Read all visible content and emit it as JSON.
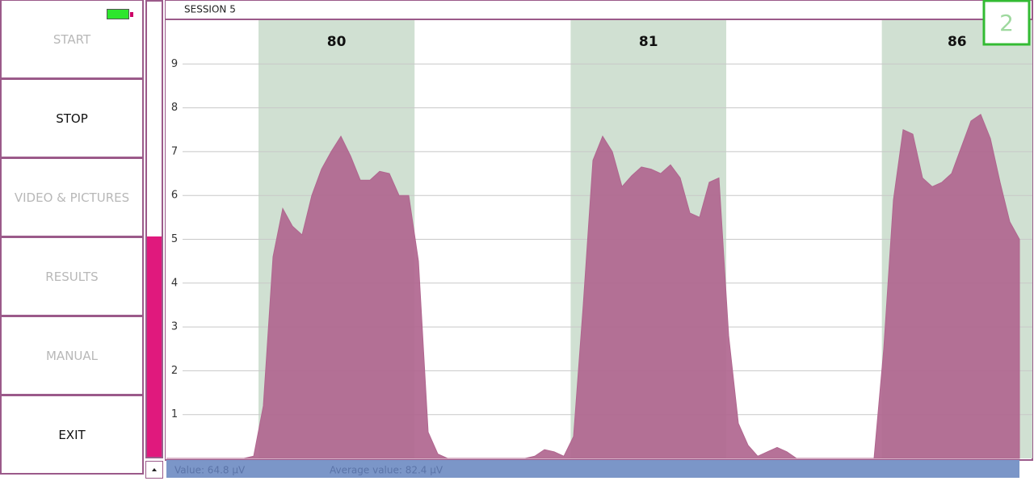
{
  "sidebar": {
    "buttons": [
      {
        "label": "START",
        "enabled": false
      },
      {
        "label": "STOP",
        "enabled": true
      },
      {
        "label": "VIDEO & PICTURES",
        "enabled": false
      },
      {
        "label": "RESULTS",
        "enabled": false
      },
      {
        "label": "MANUAL",
        "enabled": false
      },
      {
        "label": "EXIT",
        "enabled": true
      }
    ]
  },
  "header": {
    "title": "SESSION 5",
    "indicator": 2
  },
  "status": {
    "value": "Value: 64.8 µV",
    "average": "Average value: 82.4 µV"
  },
  "chart_data": {
    "type": "area",
    "color": "#b0668f",
    "band_color": "#d0e0d2",
    "grid": true,
    "xlim": [
      0,
      89.33
    ],
    "ylim": [
      0,
      10
    ],
    "yticks": [
      1,
      2,
      3,
      4,
      5,
      6,
      7,
      8,
      9
    ],
    "bands": [
      {
        "label": 80,
        "start": 9.5,
        "end": 25.6
      },
      {
        "label": 81,
        "start": 41.7,
        "end": 57.75
      },
      {
        "label": 86,
        "start": 73.8,
        "end": 89.33
      }
    ],
    "values": [
      0,
      0,
      0,
      0,
      0,
      0,
      0,
      0,
      0,
      0.05,
      1.2,
      4.6,
      5.7,
      5.3,
      5.1,
      6.0,
      6.6,
      7.0,
      7.35,
      6.9,
      6.35,
      6.35,
      6.55,
      6.5,
      6.0,
      6.0,
      4.5,
      0.6,
      0.1,
      0,
      0,
      0,
      0,
      0,
      0,
      0,
      0,
      0,
      0.05,
      0.2,
      0.15,
      0.05,
      0.5,
      3.5,
      6.8,
      7.35,
      7.0,
      6.2,
      6.45,
      6.65,
      6.6,
      6.5,
      6.7,
      6.4,
      5.6,
      5.5,
      6.3,
      6.4,
      2.8,
      0.8,
      0.3,
      0.05,
      0.15,
      0.25,
      0.15,
      0,
      0,
      0,
      0,
      0,
      0,
      0,
      0,
      0,
      2.5,
      5.9,
      7.5,
      7.4,
      6.4,
      6.2,
      6.3,
      6.5,
      7.1,
      7.7,
      7.85,
      7.3,
      6.3,
      5.4,
      5.0
    ]
  }
}
